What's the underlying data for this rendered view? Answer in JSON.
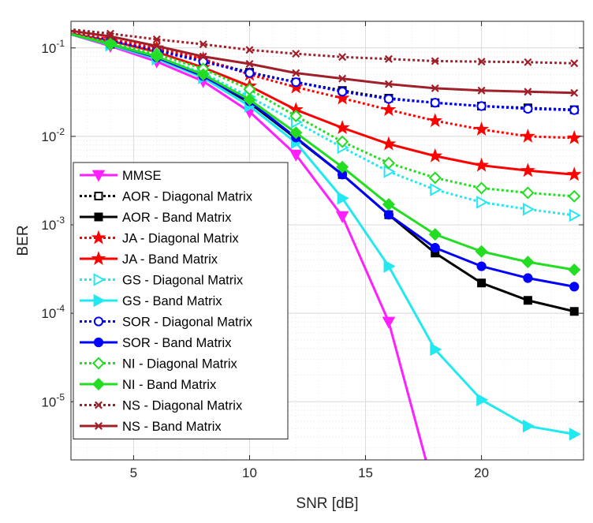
{
  "chart_data": {
    "type": "line",
    "xlabel": "SNR [dB]",
    "ylabel": "BER",
    "xlim": [
      2.3,
      24.4
    ],
    "ylim": [
      2.2e-06,
      0.2
    ],
    "yscale": "log",
    "grid": true,
    "minor_grid": true,
    "legend_position": "bottom-left",
    "x_ticks": [
      5,
      10,
      15,
      20
    ],
    "x_tick_labels": [
      "5",
      "10",
      "15",
      "20"
    ],
    "y_ticks": [
      1e-05,
      0.0001,
      0.001,
      0.01,
      0.1
    ],
    "y_tick_labels": [
      {
        "base": "10",
        "exp": "-5"
      },
      {
        "base": "10",
        "exp": "-4"
      },
      {
        "base": "10",
        "exp": "-3"
      },
      {
        "base": "10",
        "exp": "-2"
      },
      {
        "base": "10",
        "exp": "-1"
      }
    ],
    "x": [
      2,
      4,
      6,
      8,
      10,
      12,
      14,
      16,
      18,
      20,
      22,
      24
    ],
    "series": [
      {
        "name": "MMSE",
        "color": "#ff20ff",
        "dash": "solid",
        "marker": "triangle-down",
        "filled": true,
        "values": [
          0.15,
          0.105,
          0.07,
          0.042,
          0.019,
          0.0062,
          0.00125,
          8e-05,
          9e-07,
          null,
          null,
          null
        ]
      },
      {
        "name": "AOR - Diagonal Matrix",
        "color": "#000000",
        "dash": "dotted",
        "marker": "square",
        "filled": false,
        "values": [
          0.15,
          0.12,
          0.095,
          0.072,
          0.053,
          0.041,
          0.033,
          0.027,
          0.024,
          0.022,
          0.021,
          0.02
        ]
      },
      {
        "name": "AOR - Band Matrix",
        "color": "#000000",
        "dash": "solid",
        "marker": "square",
        "filled": true,
        "values": [
          0.15,
          0.11,
          0.078,
          0.048,
          0.024,
          0.0095,
          0.0037,
          0.0013,
          0.00048,
          0.00022,
          0.00014,
          0.000105
        ]
      },
      {
        "name": "JA - Diagonal Matrix",
        "color": "#ff0000",
        "dash": "dotted",
        "marker": "star",
        "filled": true,
        "values": [
          0.155,
          0.125,
          0.1,
          0.075,
          0.05,
          0.036,
          0.027,
          0.02,
          0.015,
          0.012,
          0.01,
          0.0096
        ]
      },
      {
        "name": "JA - Band Matrix",
        "color": "#ff0000",
        "dash": "solid",
        "marker": "star",
        "filled": true,
        "values": [
          0.15,
          0.12,
          0.09,
          0.06,
          0.037,
          0.02,
          0.0125,
          0.0082,
          0.006,
          0.0047,
          0.0041,
          0.0037
        ]
      },
      {
        "name": "GS - Diagonal Matrix",
        "color": "#22e8f0",
        "dash": "dotted",
        "marker": "triangle-right",
        "filled": false,
        "values": [
          0.15,
          0.11,
          0.08,
          0.052,
          0.028,
          0.0145,
          0.0075,
          0.004,
          0.0025,
          0.0018,
          0.0015,
          0.00128
        ]
      },
      {
        "name": "GS - Band Matrix",
        "color": "#22e8f0",
        "dash": "solid",
        "marker": "triangle-right",
        "filled": true,
        "values": [
          0.15,
          0.108,
          0.075,
          0.046,
          0.022,
          0.0085,
          0.002,
          0.00034,
          3.9e-05,
          1.05e-05,
          5.3e-06,
          4.3e-06
        ]
      },
      {
        "name": "SOR - Diagonal Matrix",
        "color": "#0000ff",
        "dash": "dotted",
        "marker": "circle",
        "filled": false,
        "values": [
          0.15,
          0.12,
          0.093,
          0.07,
          0.052,
          0.041,
          0.032,
          0.0265,
          0.024,
          0.022,
          0.0205,
          0.0198
        ]
      },
      {
        "name": "SOR - Band Matrix",
        "color": "#0000ff",
        "dash": "solid",
        "marker": "circle",
        "filled": true,
        "values": [
          0.15,
          0.11,
          0.078,
          0.048,
          0.025,
          0.0097,
          0.0037,
          0.0013,
          0.00055,
          0.00034,
          0.00025,
          0.0002
        ]
      },
      {
        "name": "NI - Diagonal Matrix",
        "color": "#22dd22",
        "dash": "dotted",
        "marker": "diamond",
        "filled": false,
        "values": [
          0.15,
          0.115,
          0.085,
          0.058,
          0.034,
          0.017,
          0.0087,
          0.005,
          0.0034,
          0.0026,
          0.0023,
          0.0021
        ]
      },
      {
        "name": "NI - Band Matrix",
        "color": "#22dd22",
        "dash": "solid",
        "marker": "diamond",
        "filled": true,
        "values": [
          0.15,
          0.11,
          0.08,
          0.05,
          0.026,
          0.011,
          0.0045,
          0.0017,
          0.00078,
          0.0005,
          0.00038,
          0.00031
        ]
      },
      {
        "name": "NS - Diagonal Matrix",
        "color": "#a0202a",
        "dash": "dotted",
        "marker": "x",
        "filled": false,
        "values": [
          0.165,
          0.145,
          0.125,
          0.11,
          0.095,
          0.086,
          0.079,
          0.075,
          0.071,
          0.07,
          0.069,
          0.067
        ]
      },
      {
        "name": "NS - Band Matrix",
        "color": "#a0202a",
        "dash": "solid",
        "marker": "x",
        "filled": false,
        "values": [
          0.16,
          0.135,
          0.105,
          0.08,
          0.066,
          0.052,
          0.045,
          0.039,
          0.035,
          0.033,
          0.032,
          0.031
        ]
      }
    ]
  }
}
